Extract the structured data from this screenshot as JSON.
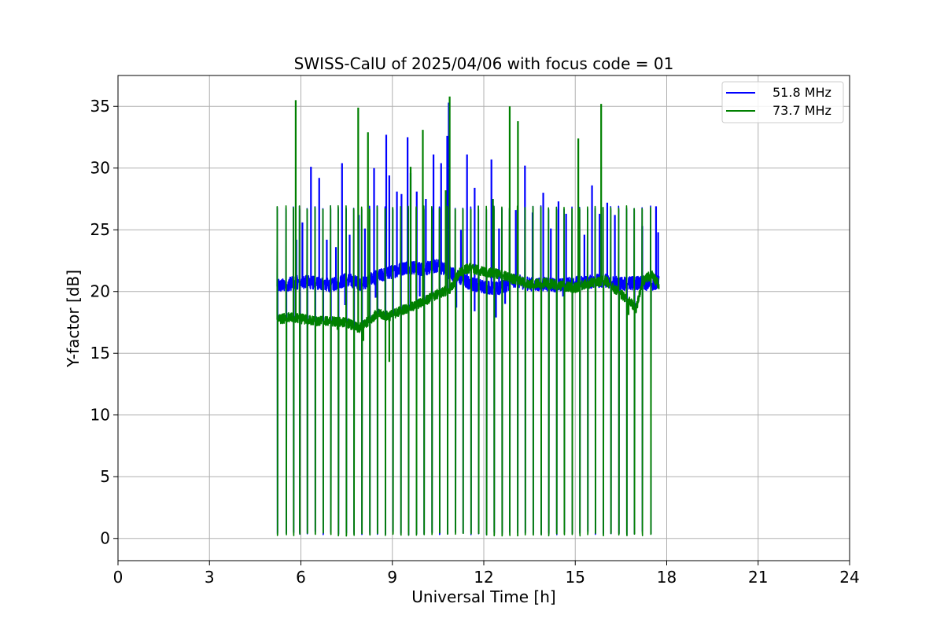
{
  "chart_data": {
    "type": "line",
    "title": "SWISS-CalU of 2025/04/06 with focus code = 01",
    "xlabel": "Universal Time [h]",
    "ylabel": "Y-factor [dB]",
    "xlim": [
      0,
      24
    ],
    "ylim": [
      -1.8,
      37.5
    ],
    "xticks": [
      0,
      3,
      6,
      9,
      12,
      15,
      18,
      21,
      24
    ],
    "yticks": [
      0,
      5,
      10,
      15,
      20,
      25,
      30,
      35
    ],
    "grid": true,
    "legend_position": "top-right",
    "calibration_times_h": [
      5.23,
      5.52,
      5.76,
      5.96,
      6.21,
      6.47,
      6.73,
      6.98,
      7.23,
      7.49,
      7.74,
      8.0,
      8.26,
      8.51,
      8.77,
      9.02,
      9.28,
      9.53,
      9.79,
      10.04,
      10.3,
      10.55,
      10.81,
      11.07,
      11.32,
      11.58,
      11.83,
      12.09,
      12.34,
      12.6,
      12.85,
      13.11,
      13.36,
      13.62,
      13.88,
      14.13,
      14.39,
      14.64,
      14.9,
      15.15,
      15.41,
      15.66,
      15.92,
      16.17,
      16.43,
      16.69,
      16.94,
      17.2,
      17.48
    ],
    "series": [
      {
        "name": "51.8 MHz",
        "color": "#0000ff",
        "baseline": {
          "x": [
            5.2,
            5.6,
            6.0,
            6.5,
            7.0,
            7.5,
            8.0,
            8.5,
            9.0,
            9.5,
            10.0,
            10.5,
            11.0,
            11.5,
            12.0,
            12.5,
            13.0,
            13.5,
            14.0,
            14.5,
            15.0,
            15.5,
            16.0,
            16.5,
            17.0,
            17.5,
            17.75
          ],
          "y": [
            20.4,
            20.6,
            20.8,
            20.7,
            20.5,
            21.0,
            20.6,
            21.2,
            21.6,
            22.0,
            21.8,
            22.1,
            21.4,
            20.7,
            20.4,
            20.2,
            20.9,
            20.6,
            20.6,
            20.5,
            20.7,
            20.8,
            20.9,
            20.6,
            20.7,
            20.6,
            20.8
          ]
        },
        "spikes": [
          {
            "x": 5.45,
            "y": 20.9
          },
          {
            "x": 5.65,
            "y": 21.2
          },
          {
            "x": 5.85,
            "y": 24.2
          },
          {
            "x": 6.05,
            "y": 25.6
          },
          {
            "x": 6.33,
            "y": 30.1
          },
          {
            "x": 6.6,
            "y": 29.2
          },
          {
            "x": 6.85,
            "y": 24.2
          },
          {
            "x": 7.15,
            "y": 23.6
          },
          {
            "x": 7.35,
            "y": 30.4
          },
          {
            "x": 7.6,
            "y": 24.6
          },
          {
            "x": 7.9,
            "y": 26.2
          },
          {
            "x": 8.1,
            "y": 25.1
          },
          {
            "x": 8.4,
            "y": 30.0
          },
          {
            "x": 8.8,
            "y": 32.7
          },
          {
            "x": 8.9,
            "y": 29.4
          },
          {
            "x": 9.15,
            "y": 28.1
          },
          {
            "x": 9.3,
            "y": 27.9
          },
          {
            "x": 9.5,
            "y": 32.5
          },
          {
            "x": 9.6,
            "y": 29.6
          },
          {
            "x": 9.8,
            "y": 28.1
          },
          {
            "x": 10.1,
            "y": 27.5
          },
          {
            "x": 10.35,
            "y": 31.1
          },
          {
            "x": 10.6,
            "y": 30.4
          },
          {
            "x": 10.8,
            "y": 32.6
          },
          {
            "x": 10.85,
            "y": 35.3
          },
          {
            "x": 11.25,
            "y": 25.0
          },
          {
            "x": 11.45,
            "y": 31.1
          },
          {
            "x": 11.7,
            "y": 28.4
          },
          {
            "x": 12.25,
            "y": 30.7
          },
          {
            "x": 12.5,
            "y": 25.1
          },
          {
            "x": 13.05,
            "y": 26.6
          },
          {
            "x": 13.35,
            "y": 30.2
          },
          {
            "x": 13.6,
            "y": 26.4
          },
          {
            "x": 13.95,
            "y": 28.0
          },
          {
            "x": 14.2,
            "y": 25.1
          },
          {
            "x": 14.45,
            "y": 27.3
          },
          {
            "x": 14.7,
            "y": 26.3
          },
          {
            "x": 15.3,
            "y": 24.6
          },
          {
            "x": 15.55,
            "y": 28.6
          },
          {
            "x": 15.8,
            "y": 26.3
          },
          {
            "x": 16.05,
            "y": 27.2
          },
          {
            "x": 16.3,
            "y": 26.2
          },
          {
            "x": 17.2,
            "y": 25.3
          },
          {
            "x": 17.65,
            "y": 26.9
          },
          {
            "x": 17.72,
            "y": 24.8
          }
        ],
        "dips": [
          {
            "x": 7.45,
            "y": 18.9
          },
          {
            "x": 8.45,
            "y": 19.5
          },
          {
            "x": 9.9,
            "y": 19.6
          },
          {
            "x": 11.1,
            "y": 18.7
          },
          {
            "x": 11.7,
            "y": 18.4
          },
          {
            "x": 12.4,
            "y": 17.9
          },
          {
            "x": 12.7,
            "y": 19.0
          },
          {
            "x": 14.6,
            "y": 19.6
          }
        ]
      },
      {
        "name": "73.7 MHz",
        "color": "#008000",
        "baseline": {
          "x": [
            5.2,
            5.6,
            6.0,
            6.5,
            7.0,
            7.5,
            7.9,
            8.2,
            8.5,
            8.9,
            9.3,
            9.7,
            10.1,
            10.5,
            10.9,
            11.2,
            11.5,
            12.0,
            12.5,
            13.0,
            13.5,
            14.0,
            14.5,
            15.0,
            15.5,
            16.0,
            16.4,
            16.8,
            17.0,
            17.2,
            17.5,
            17.75
          ],
          "y": [
            17.7,
            17.9,
            17.8,
            17.6,
            17.6,
            17.5,
            17.0,
            17.6,
            18.2,
            18.0,
            18.5,
            18.8,
            19.3,
            19.8,
            20.2,
            21.5,
            21.9,
            21.6,
            21.4,
            21.0,
            20.6,
            20.7,
            20.5,
            20.3,
            20.7,
            20.9,
            20.0,
            19.2,
            18.6,
            20.8,
            21.4,
            20.5
          ]
        },
        "spikes": [
          {
            "x": 5.83,
            "y": 35.5
          },
          {
            "x": 7.88,
            "y": 34.9
          },
          {
            "x": 8.2,
            "y": 32.9
          },
          {
            "x": 9.6,
            "y": 30.1
          },
          {
            "x": 10.0,
            "y": 33.1
          },
          {
            "x": 10.88,
            "y": 35.8
          },
          {
            "x": 12.85,
            "y": 35.0
          },
          {
            "x": 13.12,
            "y": 33.8
          },
          {
            "x": 15.1,
            "y": 32.4
          },
          {
            "x": 15.85,
            "y": 35.2
          },
          {
            "x": 10.75,
            "y": 28.2
          },
          {
            "x": 12.3,
            "y": 27.5
          }
        ],
        "dips": [
          {
            "x": 8.05,
            "y": 16.0
          },
          {
            "x": 8.9,
            "y": 14.3
          },
          {
            "x": 7.2,
            "y": 16.9
          },
          {
            "x": 16.75,
            "y": 18.1
          }
        ]
      }
    ],
    "calibration_peak": 26.8,
    "calibration_floor_blue": 0.3,
    "calibration_floor_green": 0.2
  }
}
